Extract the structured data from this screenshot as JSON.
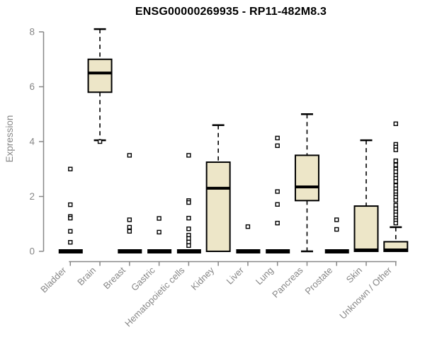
{
  "chart_data": {
    "type": "boxplot",
    "title": "ENSG00000269935 - RP11-482M8.3",
    "ylabel": "Expression",
    "xlabel": "",
    "ylim": [
      0,
      8
    ],
    "yticks": [
      0,
      2,
      4,
      6,
      8
    ],
    "grid": false,
    "legend": "none",
    "colors": {
      "box_fill": "#EDE6C8",
      "box_border": "#000000",
      "axis": "#878787",
      "title": "#000000",
      "background": "#ffffff"
    },
    "categories": [
      "Bladder",
      "Brain",
      "Breast",
      "Gastric",
      "Hematopoietic cells",
      "Kidney",
      "Liver",
      "Lung",
      "Pancreas",
      "Prostate",
      "Skin",
      "Unknown / Other"
    ],
    "series": [
      {
        "category": "Bladder",
        "q1": 0,
        "median": 0,
        "q3": 0,
        "whisker_low": 0,
        "whisker_high": 0,
        "outliers": [
          3.0,
          1.7,
          1.27,
          1.21,
          0.73,
          0.33
        ]
      },
      {
        "category": "Brain",
        "q1": 5.8,
        "median": 6.5,
        "q3": 7.0,
        "whisker_low": 4.05,
        "whisker_high": 8.1,
        "outliers": [
          4.0
        ]
      },
      {
        "category": "Breast",
        "q1": 0,
        "median": 0,
        "q3": 0,
        "whisker_low": 0,
        "whisker_high": 0,
        "outliers": [
          3.5,
          1.15,
          0.88,
          0.73
        ]
      },
      {
        "category": "Gastric",
        "q1": 0,
        "median": 0,
        "q3": 0,
        "whisker_low": 0,
        "whisker_high": 0,
        "outliers": [
          1.2,
          0.7
        ]
      },
      {
        "category": "Hematopoietic cells",
        "q1": 0,
        "median": 0,
        "q3": 0,
        "whisker_low": 0,
        "whisker_high": 0,
        "outliers": [
          3.5,
          1.85,
          1.78,
          1.21,
          0.82,
          0.59,
          0.47,
          0.34,
          0.21
        ]
      },
      {
        "category": "Kidney",
        "q1": 0,
        "median": 2.3,
        "q3": 3.25,
        "whisker_low": 0,
        "whisker_high": 4.6,
        "outliers": []
      },
      {
        "category": "Liver",
        "q1": 0,
        "median": 0,
        "q3": 0,
        "whisker_low": 0,
        "whisker_high": 0,
        "outliers": [
          0.9
        ]
      },
      {
        "category": "Lung",
        "q1": 0,
        "median": 0,
        "q3": 0,
        "whisker_low": 0,
        "whisker_high": 0,
        "outliers": [
          4.13,
          3.85,
          2.18,
          1.71,
          1.03
        ]
      },
      {
        "category": "Pancreas",
        "q1": 1.85,
        "median": 2.35,
        "q3": 3.5,
        "whisker_low": 0,
        "whisker_high": 5.0,
        "outliers": []
      },
      {
        "category": "Prostate",
        "q1": 0,
        "median": 0,
        "q3": 0,
        "whisker_low": 0,
        "whisker_high": 0,
        "outliers": [
          1.15,
          0.8
        ]
      },
      {
        "category": "Skin",
        "q1": 0,
        "median": 0.02,
        "q3": 1.65,
        "whisker_low": 0,
        "whisker_high": 4.05,
        "outliers": []
      },
      {
        "category": "Unknown / Other",
        "q1": 0,
        "median": 0.05,
        "q3": 0.35,
        "whisker_low": 0,
        "whisker_high": 0.88,
        "outliers": [
          4.65,
          3.9,
          3.8,
          3.7,
          3.3,
          3.15,
          3.0,
          2.9,
          2.77,
          2.66,
          2.55,
          2.4,
          2.28,
          2.17,
          2.06,
          1.97,
          1.86,
          1.68,
          1.55,
          1.43,
          1.33,
          1.21,
          1.12,
          1.03
        ]
      }
    ]
  }
}
